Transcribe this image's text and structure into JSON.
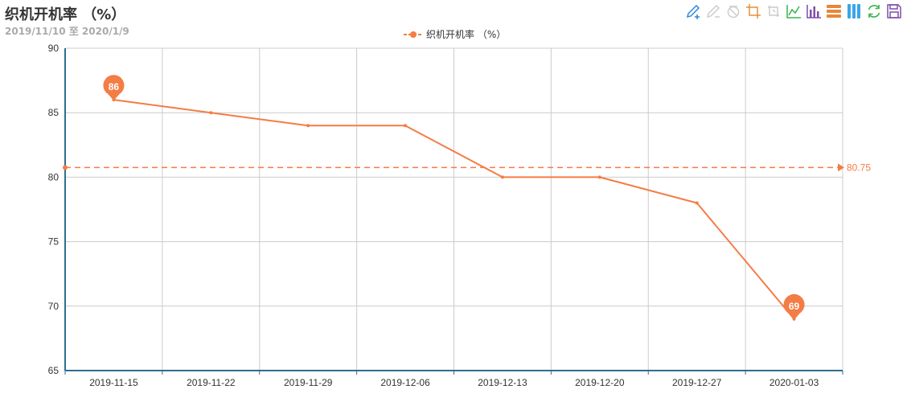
{
  "header": {
    "title": "织机开机率 （%）",
    "subtitle": "2019/11/10 至 2020/1/9"
  },
  "legend": {
    "label": "织机开机率 （%）"
  },
  "toolbox": {
    "icons": [
      {
        "name": "mark-pen-icon",
        "color": "#2e86d8"
      },
      {
        "name": "eraser-pen-icon",
        "color": "#cccccc"
      },
      {
        "name": "clear-icon",
        "color": "#cccccc"
      },
      {
        "name": "data-zoom-icon",
        "color": "#e88e3a"
      },
      {
        "name": "zoom-reset-icon",
        "color": "#cccccc"
      },
      {
        "name": "line-chart-icon",
        "color": "#3bb24a"
      },
      {
        "name": "bar-chart-icon",
        "color": "#7d4ea8"
      },
      {
        "name": "stack-icon",
        "color": "#e8863a"
      },
      {
        "name": "tiled-icon",
        "color": "#3aa5e8"
      },
      {
        "name": "restore-icon",
        "color": "#3bb24a"
      },
      {
        "name": "save-image-icon",
        "color": "#7d4ea8"
      }
    ]
  },
  "chart_data": {
    "type": "line",
    "categories": [
      "2019-11-15",
      "2019-11-22",
      "2019-11-29",
      "2019-12-06",
      "2019-12-13",
      "2019-12-20",
      "2019-12-27",
      "2020-01-03"
    ],
    "series": [
      {
        "name": "织机开机率 （%）",
        "values": [
          86,
          85,
          84,
          84,
          80,
          80,
          78,
          69
        ],
        "color": "#f47c45"
      }
    ],
    "ylim": [
      65,
      90
    ],
    "yticks": [
      65,
      70,
      75,
      80,
      85,
      90
    ],
    "grid": true,
    "legend_position": "top-center",
    "mark_points": [
      {
        "label": "86",
        "category": "2019-11-15",
        "value": 86
      },
      {
        "label": "69",
        "category": "2020-01-03",
        "value": 69
      }
    ],
    "mark_line": {
      "label": "80.75",
      "value": 80.75
    }
  }
}
